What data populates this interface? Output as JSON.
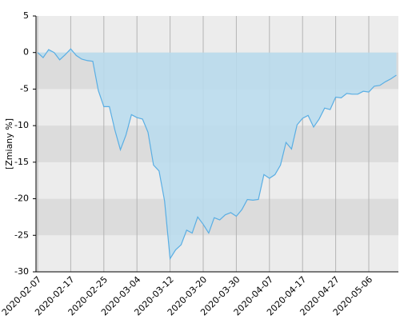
{
  "chart_data": {
    "type": "area",
    "y_label": "[Zmiany %]",
    "categories": [
      "2020-02-07",
      null,
      null,
      null,
      null,
      null,
      "2020-02-17",
      null,
      null,
      null,
      null,
      null,
      "2020-02-25",
      null,
      null,
      null,
      null,
      null,
      "2020-03-04",
      null,
      null,
      null,
      null,
      null,
      "2020-03-12",
      null,
      null,
      null,
      null,
      null,
      "2020-03-20",
      null,
      null,
      null,
      null,
      null,
      "2020-03-30",
      null,
      null,
      null,
      null,
      null,
      "2020-04-07",
      null,
      null,
      null,
      null,
      null,
      "2020-04-17",
      null,
      null,
      null,
      null,
      null,
      "2020-04-27",
      null,
      null,
      null,
      null,
      null,
      "2020-05-06",
      null,
      null,
      null,
      null,
      null
    ],
    "series": [
      {
        "color": "#5aaee3",
        "fill": "#b8dcef",
        "values": [
          0,
          -0.7,
          0.4,
          0,
          -1,
          -0.3,
          0.5,
          -0.4,
          -0.9,
          -1.1,
          -1.2,
          -5.2,
          -7.4,
          -7.4,
          -10.6,
          -13.3,
          -11.3,
          -8.5,
          -8.9,
          -9.1,
          -10.9,
          -15.4,
          -16.2,
          -20.3,
          -28.2,
          -27,
          -26.3,
          -24.3,
          -24.7,
          -22.5,
          -23.5,
          -24.7,
          -22.6,
          -22.9,
          -22.2,
          -21.9,
          -22.4,
          -21.5,
          -20.1,
          -20.2,
          -20.1,
          -16.7,
          -17.2,
          -16.7,
          -15.4,
          -12.3,
          -13.2,
          -9.9,
          -9,
          -8.6,
          -10.2,
          -9.1,
          -7.6,
          -7.8,
          -6.1,
          -6.2,
          -5.6,
          -5.7,
          -5.7,
          -5.3,
          -5.4,
          -4.6,
          -4.5,
          -4.0,
          -3.6,
          -3.1
        ]
      }
    ],
    "ylim": [
      -30,
      5
    ],
    "yticks": [
      5,
      0,
      -5,
      -10,
      -15,
      -20,
      -25,
      -30
    ],
    "grid": true
  }
}
